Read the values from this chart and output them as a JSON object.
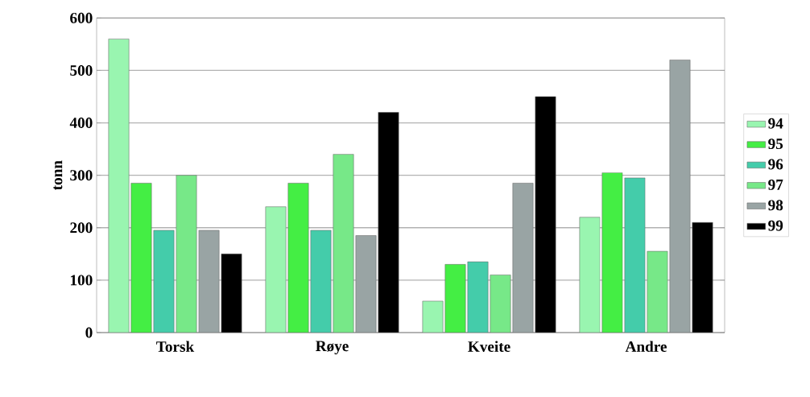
{
  "chart_data": {
    "type": "bar",
    "ylabel": "tonn",
    "categories": [
      "Torsk",
      "Røye",
      "Kveite",
      "Andre"
    ],
    "series": [
      {
        "name": "94",
        "color": "#99f5b0",
        "values": [
          560,
          240,
          60,
          220
        ]
      },
      {
        "name": "95",
        "color": "#44ee44",
        "values": [
          285,
          285,
          130,
          305
        ]
      },
      {
        "name": "96",
        "color": "#44ccaa",
        "values": [
          195,
          195,
          135,
          295
        ]
      },
      {
        "name": "97",
        "color": "#77e888",
        "values": [
          300,
          340,
          110,
          155
        ]
      },
      {
        "name": "98",
        "color": "#99a4a4",
        "values": [
          195,
          185,
          285,
          520
        ]
      },
      {
        "name": "99",
        "color": "#000000",
        "values": [
          150,
          420,
          450,
          210
        ]
      }
    ],
    "ylim": [
      0,
      600
    ],
    "yticks": [
      0,
      100,
      200,
      300,
      400,
      500,
      600
    ],
    "grid": "y",
    "legend": "right"
  }
}
